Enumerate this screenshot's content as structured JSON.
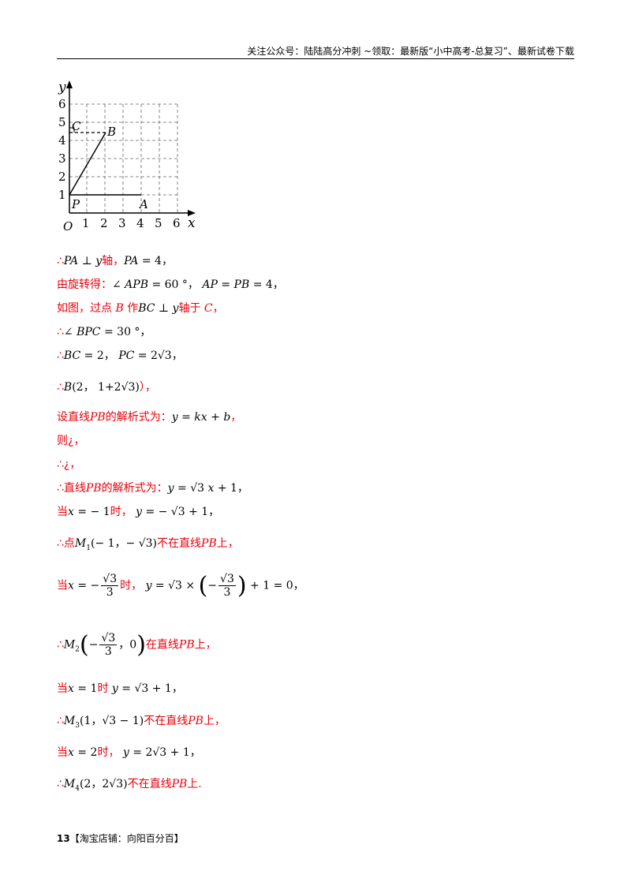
{
  "header": {
    "text": "关注公众号：陆陆高分冲刺 ~领取：最新版“小中高考-总复习”、最新试卷下载"
  },
  "graph": {
    "axis_x": "x",
    "axis_y": "y",
    "origin": "O",
    "x_ticks": [
      "1",
      "2",
      "3",
      "4",
      "5",
      "6"
    ],
    "y_ticks": [
      "1",
      "2",
      "3",
      "4",
      "5",
      "6"
    ],
    "labels": {
      "C": "C",
      "B": "B",
      "P": "P",
      "A": "A"
    }
  },
  "lines": {
    "l1": {
      "a": "∴",
      "b": "PA ⊥ y",
      "c": "轴，",
      "d": "PA",
      "e": " = 4，"
    },
    "l2": {
      "a": "由旋转得：",
      "b": "∠ APB",
      "c": " = 60 °，  ",
      "d": "AP",
      "e": " = ",
      "f": "PB",
      "g": " = 4，"
    },
    "l3": {
      "a": "如图，过点 ",
      "b": "B",
      "c": " 作",
      "d": "BC ⊥ y",
      "e": "轴于 ",
      "f": "C",
      "g": "，"
    },
    "l4": {
      "a": "∴",
      "b": "∠ BPC",
      "c": " = 30 °，"
    },
    "l5": {
      "a": "∴",
      "b": "BC",
      "c": " = 2，  ",
      "d": "PC",
      "e": " = 2√3，"
    },
    "l6": {
      "a": "∴",
      "b": "B",
      "c": "(2，  1+2√3)",
      "d": "），"
    },
    "l7": {
      "a": "设直线",
      "b": "PB",
      "c": "的解析式为：",
      "d": "y",
      "e": " = ",
      "f": "kx",
      "g": " + ",
      "h": "b",
      "i": "，"
    },
    "l8": {
      "a": "则¿，"
    },
    "l9": {
      "a": "∴¿，"
    },
    "l10": {
      "a": "∴直线",
      "b": "PB",
      "c": "的解析式为：",
      "d": "y",
      "e": " = √3 ",
      "f": "x",
      "g": " + 1，"
    },
    "l11": {
      "a": "当",
      "b": "x",
      "c": " = − 1",
      "d": "时，  ",
      "e": "y",
      "f": " = − √3 + 1，"
    },
    "l12": {
      "a": "∴点",
      "b": "M",
      "sub": "1",
      "c": "(− 1，− √3)",
      "d": "不在直线",
      "e": "PB",
      "f": "上，"
    },
    "l13": {
      "a": "当",
      "b": "x",
      "c": " = −",
      "num": "√3",
      "den": "3",
      "d": "时，  ",
      "e": "y",
      "f": " = √3 × ",
      "g": "−",
      "h": " + 1 = 0，"
    },
    "l14": {
      "a": "∴",
      "b": "M",
      "sub": "2",
      "c": "−",
      "num": "√3",
      "den": "3",
      "d": "，0",
      "e": "在直线",
      "f": "PB",
      "g": "上，"
    },
    "l15": {
      "a": "当",
      "b": "x",
      "c": " = 1",
      "d": "时 ",
      "e": "y",
      "f": " = √3 + 1，"
    },
    "l16": {
      "a": "∴",
      "b": "M",
      "sub": "3",
      "c": "(1，√3 − 1)",
      "d": "不在直线",
      "e": "PB",
      "f": "上，"
    },
    "l17": {
      "a": "当",
      "b": "x",
      "c": " = 2",
      "d": "时，  ",
      "e": "y",
      "f": " = 2√3 + 1，"
    },
    "l18": {
      "a": "∴",
      "b": "M",
      "sub": "4",
      "c": "(2，2√3)",
      "d": "不在直线",
      "e": "PB",
      "f": "上."
    }
  },
  "footer": {
    "page": "13",
    "text": "【淘宝店铺：向阳百分百】"
  }
}
